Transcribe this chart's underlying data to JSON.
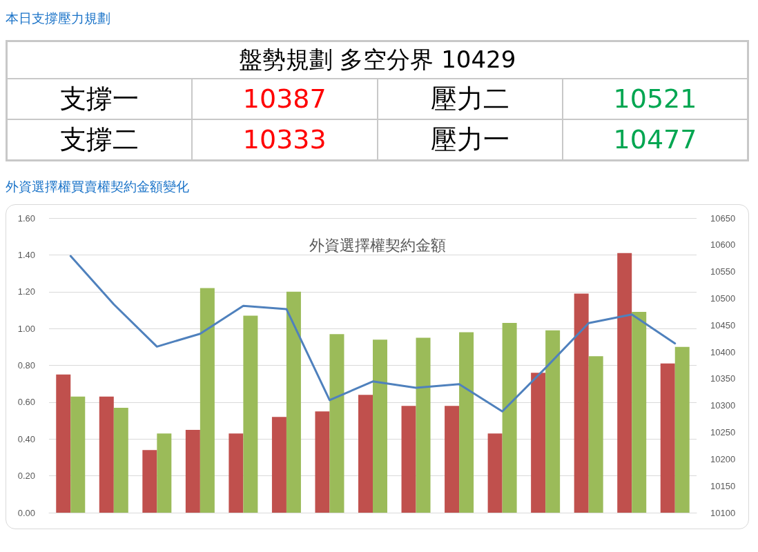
{
  "chart_data": [
    {
      "type": "other",
      "title": "本日支撐壓力規劃",
      "subtitle": "盤勢規劃 多空分界 10429",
      "annotations": [
        "支撐一",
        "10387",
        "壓力二",
        "10521",
        "支撐二",
        "10333",
        "壓力一",
        "10477"
      ],
      "colors": [
        "#000000",
        "#ff0000",
        "#000000",
        "#00a651",
        "#000000",
        "#ff0000",
        "#000000",
        "#00a651"
      ]
    },
    {
      "type": "bar",
      "title": "外資選擇權契約金額",
      "subtitle": "外資選擇權買賣權契約金額變化",
      "categories": [
        null,
        null,
        null,
        null,
        null,
        null,
        null,
        null,
        null,
        null,
        null,
        null,
        null,
        null,
        null
      ],
      "series": [
        {
          "color": "#c0504d",
          "values": [
            0.75,
            0.63,
            0.34,
            0.45,
            0.43,
            0.52,
            0.55,
            0.64,
            0.58,
            0.58,
            0.43,
            0.76,
            1.19,
            1.41,
            0.81
          ]
        },
        {
          "color": "#9bbb59",
          "values": [
            0.63,
            0.57,
            0.43,
            1.22,
            1.07,
            1.2,
            0.97,
            0.94,
            0.95,
            0.98,
            1.03,
            0.99,
            0.85,
            1.09,
            0.9
          ]
        },
        {
          "type": "line",
          "axis": "y2",
          "color": "#4f81bd",
          "values": [
            10579,
            10489,
            10410,
            10434,
            10486,
            10480,
            10310,
            10345,
            10333,
            10340,
            10289,
            10370,
            10454,
            10470,
            10416
          ]
        }
      ],
      "ylim": [
        0,
        1.6
      ],
      "yticks": [
        {
          "value": 0,
          "label": "0.00"
        },
        {
          "value": 0.2,
          "label": "0.20"
        },
        {
          "value": 0.4,
          "label": "0.40"
        },
        {
          "value": 0.6,
          "label": "0.60"
        },
        {
          "value": 0.8,
          "label": "0.80"
        },
        {
          "value": 1,
          "label": "1.00"
        },
        {
          "value": 1.2,
          "label": "1.20"
        },
        {
          "value": 1.4,
          "label": "1.40"
        },
        {
          "value": 1.6,
          "label": "1.60"
        }
      ],
      "y2lim": [
        10100,
        10650
      ],
      "y2ticks": [
        10100,
        10150,
        10200,
        10250,
        10300,
        10350,
        10400,
        10450,
        10500,
        10550,
        10600,
        10650
      ],
      "grid": "y",
      "marker": "none",
      "line_style": "solid"
    }
  ]
}
